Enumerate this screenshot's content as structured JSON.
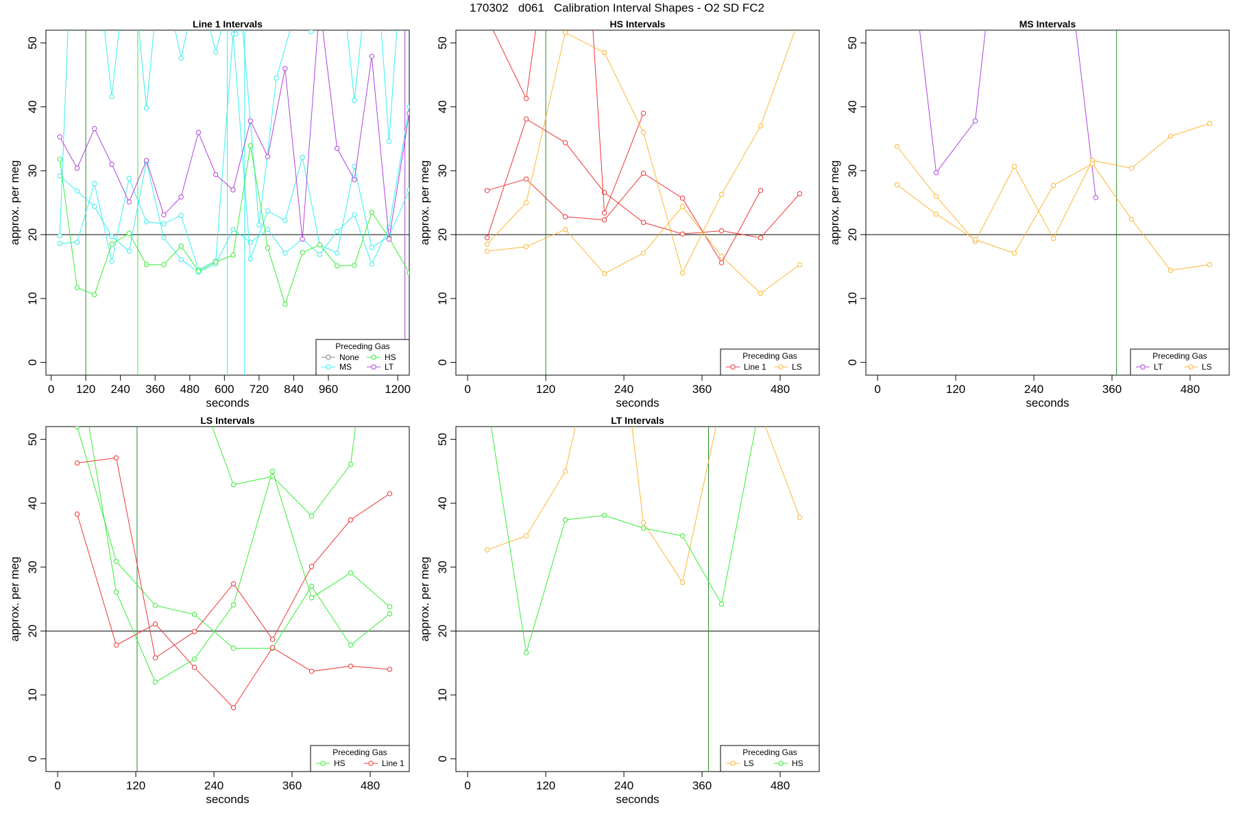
{
  "title": "170302   d061   Calibration Interval Shapes - O2 SD FC2",
  "colors": {
    "None": "#808080",
    "HS": "#33ee33",
    "MS": "#33eeee",
    "LT": "#b040dd",
    "Line 1": "#ee3333",
    "LS": "#ffb533",
    "ref": "#000000",
    "vline": "#228822"
  },
  "chart_data": [
    {
      "type": "line",
      "title": "Line 1 Intervals",
      "xlabel": "seconds",
      "ylabel": "approx. per meg",
      "xlim": [
        -18,
        1240
      ],
      "ylim": [
        -2,
        52
      ],
      "xticks": [
        0,
        120,
        240,
        360,
        480,
        600,
        720,
        840,
        960,
        1200
      ],
      "yticks": [
        0,
        10,
        20,
        30,
        40,
        50
      ],
      "hline": 20,
      "vlines": [
        {
          "x": 120,
          "color": "#228822"
        },
        {
          "x": 300,
          "color": "#33ee33"
        },
        {
          "x": 610,
          "color": "#33eeee"
        },
        {
          "x": 670,
          "color": "#33eeee"
        },
        {
          "x": 1225,
          "color": "#b040dd"
        }
      ],
      "legend": {
        "title": "Preceding Gas",
        "position": "bottom-right",
        "entries": [
          "None",
          "HS",
          "MS",
          "LT"
        ]
      },
      "series": [
        {
          "gas": "MS",
          "x": [
            30,
            90,
            150,
            210,
            270,
            330,
            390,
            450,
            510,
            570,
            630,
            690,
            750,
            810,
            870,
            930,
            990,
            1050,
            1110,
            1170,
            1240
          ],
          "y": [
            29.2,
            26.8,
            24.4,
            19.7,
            17.4,
            31.4,
            19.5,
            16.1,
            14.1,
            15.4,
            20.8,
            18.8,
            20.8,
            17.1,
            19.3,
            16.9,
            20.5,
            23.1,
            15.4,
            21.1,
            40
          ]
        },
        {
          "gas": "MS",
          "x": [
            30,
            90,
            150,
            210,
            270,
            330,
            390,
            450,
            510,
            570,
            630,
            690,
            750,
            810,
            870,
            930,
            990,
            1050,
            1110,
            1170,
            1240
          ],
          "y": [
            18.6,
            18.8,
            28.0,
            15.8,
            28.8,
            22.0,
            21.7,
            23.0,
            14.5,
            15.9,
            51.4,
            16.2,
            23.7,
            22.2,
            32.1,
            18.4,
            17.1,
            30.7,
            18.0,
            19.7,
            27
          ]
        },
        {
          "gas": "MS",
          "x": [
            30,
            60,
            120,
            180,
            210,
            240,
            300,
            330,
            360,
            420,
            450,
            480,
            540,
            570,
            600,
            640,
            660,
            720,
            780,
            840,
            870,
            900,
            960,
            1020,
            1050,
            1080,
            1140,
            1170,
            1200,
            1240
          ],
          "y": [
            19.8,
            54,
            54,
            54,
            41.6,
            54,
            54,
            39.8,
            54,
            54,
            47.6,
            54,
            54,
            48.6,
            54,
            51.4,
            54,
            21.5,
            44.5,
            54,
            54,
            51.8,
            54,
            54,
            41.0,
            54,
            54,
            34.6,
            54,
            54
          ]
        },
        {
          "gas": "HS",
          "x": [
            30,
            90,
            150,
            210,
            270,
            330,
            390,
            450,
            510,
            570,
            630,
            690,
            750,
            810,
            870,
            930,
            990,
            1050,
            1110,
            1170,
            1240
          ],
          "y": [
            31.8,
            11.7,
            10.6,
            18.5,
            20.2,
            15.3,
            15.3,
            18.2,
            14.3,
            15.7,
            16.8,
            33.9,
            17.9,
            9.1,
            17.2,
            18.4,
            15.1,
            15.2,
            23.5,
            19.5,
            14
          ]
        },
        {
          "gas": "LT",
          "x": [
            30,
            90,
            150,
            210,
            270,
            330,
            390,
            450,
            510,
            570,
            630,
            690,
            750,
            810,
            870,
            930,
            990,
            1050,
            1110,
            1170,
            1240
          ],
          "y": [
            35.3,
            30.4,
            36.6,
            31.0,
            25.1,
            31.6,
            23.1,
            25.9,
            36.0,
            29.4,
            27.0,
            37.8,
            32.2,
            46.0,
            19.3,
            56,
            33.5,
            28.6,
            47.9,
            19.3,
            39
          ]
        }
      ]
    },
    {
      "type": "line",
      "title": "HS Intervals",
      "xlabel": "seconds",
      "ylabel": "approx. per meg",
      "xlim": [
        -18,
        540
      ],
      "ylim": [
        -2,
        52
      ],
      "xticks": [
        0,
        120,
        240,
        360,
        480
      ],
      "yticks": [
        0,
        10,
        20,
        30,
        40,
        50
      ],
      "hline": 20,
      "vlines": [
        {
          "x": 120,
          "color": "#228822"
        }
      ],
      "legend": {
        "title": "Preceding Gas",
        "position": "bottom-right",
        "entries": [
          "Line 1",
          "LS"
        ]
      },
      "series": [
        {
          "gas": "Line 1",
          "x": [
            30,
            90,
            150,
            210,
            270,
            330,
            390,
            450,
            510
          ],
          "y": [
            26.9,
            28.7,
            22.8,
            22.3,
            29.6,
            25.7,
            15.6,
            26.9,
            null
          ]
        },
        {
          "gas": "Line 1",
          "x": [
            30,
            90,
            150,
            210,
            270,
            330,
            390,
            450,
            510
          ],
          "y": [
            19.5,
            38.1,
            34.4,
            26.6,
            21.9,
            20.1,
            20.6,
            19.5,
            26.4
          ]
        },
        {
          "gas": "Line 1",
          "x": [
            20,
            90,
            110,
            190,
            210,
            270
          ],
          "y": [
            56,
            41.3,
            56,
            56,
            23.4,
            39.0
          ]
        },
        {
          "gas": "LS",
          "x": [
            30,
            90,
            150,
            210,
            270,
            330,
            390,
            450,
            510
          ],
          "y": [
            18.5,
            25.0,
            51.6,
            48.5,
            36.0,
            14.0,
            26.3,
            37.0,
            54
          ]
        },
        {
          "gas": "LS",
          "x": [
            30,
            90,
            150,
            210,
            270,
            330,
            390,
            450,
            510
          ],
          "y": [
            17.4,
            18.1,
            20.8,
            13.9,
            17.1,
            24.4,
            16.6,
            10.8,
            15.3
          ]
        }
      ]
    },
    {
      "type": "line",
      "title": "MS Intervals",
      "xlabel": "seconds",
      "ylabel": "approx. per meg",
      "xlim": [
        -18,
        540
      ],
      "ylim": [
        -2,
        52
      ],
      "xticks": [
        0,
        120,
        240,
        360,
        480
      ],
      "yticks": [
        0,
        10,
        20,
        30,
        40,
        50
      ],
      "hline": 20,
      "vlines": [
        {
          "x": 367,
          "color": "#228822"
        }
      ],
      "legend": {
        "title": "Preceding Gas",
        "position": "bottom-right",
        "entries": [
          "LT",
          "LS"
        ]
      },
      "series": [
        {
          "gas": "LT",
          "x": [
            60,
            90,
            150,
            170,
            300,
            335
          ],
          "y": [
            56,
            29.7,
            37.8,
            56,
            56,
            25.8
          ]
        },
        {
          "gas": "LS",
          "x": [
            30,
            90,
            150,
            210,
            270,
            330,
            390,
            450,
            510
          ],
          "y": [
            33.8,
            26.0,
            18.9,
            30.7,
            19.4,
            31.6,
            30.4,
            35.4,
            37.4
          ]
        },
        {
          "gas": "LS",
          "x": [
            30,
            90,
            150,
            210,
            270,
            330,
            390,
            450,
            510
          ],
          "y": [
            27.8,
            23.2,
            19.2,
            17.1,
            27.7,
            31.1,
            22.4,
            14.4,
            15.3
          ]
        }
      ]
    },
    {
      "type": "line",
      "title": "LS Intervals",
      "xlabel": "seconds",
      "ylabel": "approx. per meg",
      "xlim": [
        -18,
        540
      ],
      "ylim": [
        -2,
        52
      ],
      "xticks": [
        0,
        120,
        240,
        360,
        480
      ],
      "yticks": [
        0,
        10,
        20,
        30,
        40,
        50
      ],
      "hline": 20,
      "vlines": [
        {
          "x": 122,
          "color": "#228822"
        }
      ],
      "legend": {
        "title": "Preceding Gas",
        "position": "bottom-right",
        "entries": [
          "HS",
          "Line 1"
        ]
      },
      "series": [
        {
          "gas": "HS",
          "x": [
            30,
            90,
            150,
            210,
            270,
            330,
            390,
            450,
            510
          ],
          "y": [
            52,
            30.9,
            24.0,
            22.6,
            17.3,
            17.3,
            27.0,
            17.8,
            22.7
          ]
        },
        {
          "gas": "HS",
          "x": [
            45,
            90,
            150,
            210,
            270,
            330,
            390,
            450,
            510
          ],
          "y": [
            54,
            26.1,
            12.0,
            15.6,
            24.1,
            45.0,
            25.2,
            29.1,
            23.8
          ]
        },
        {
          "gas": "HS",
          "x": [
            230,
            270,
            330,
            390,
            450,
            460
          ],
          "y": [
            54,
            42.9,
            44.2,
            38.0,
            46.1,
            54
          ]
        },
        {
          "gas": "Line 1",
          "x": [
            30,
            90,
            150,
            210,
            270,
            330,
            390,
            450,
            510
          ],
          "y": [
            46.3,
            47.1,
            15.8,
            19.9,
            27.4,
            18.7,
            30.1,
            37.4,
            41.5
          ]
        },
        {
          "gas": "Line 1",
          "x": [
            30,
            90,
            150,
            210,
            270,
            330,
            390,
            450,
            510
          ],
          "y": [
            38.3,
            17.8,
            21.1,
            14.3,
            8.0,
            17.4,
            13.7,
            14.5,
            14.0
          ]
        }
      ]
    },
    {
      "type": "line",
      "title": "LT Intervals",
      "xlabel": "seconds",
      "ylabel": "approx. per meg",
      "xlim": [
        -18,
        540
      ],
      "ylim": [
        -2,
        52
      ],
      "xticks": [
        0,
        120,
        240,
        360,
        480
      ],
      "yticks": [
        0,
        10,
        20,
        30,
        40,
        50
      ],
      "hline": 20,
      "vlines": [
        {
          "x": 370,
          "color": "#228822"
        }
      ],
      "legend": {
        "title": "Preceding Gas",
        "position": "bottom-right",
        "entries": [
          "LS",
          "HS"
        ]
      },
      "series": [
        {
          "gas": "LS",
          "x": [
            30,
            90,
            150,
            170,
            250,
            270,
            330,
            390,
            450,
            510
          ],
          "y": [
            32.7,
            34.9,
            45.0,
            54,
            54,
            37.0,
            27.6,
            56,
            54,
            37.8
          ]
        },
        {
          "gas": "HS",
          "x": [
            30,
            90,
            150,
            210,
            270,
            330,
            390,
            450
          ],
          "y": [
            56,
            16.6,
            37.4,
            38.1,
            36.1,
            34.9,
            24.2,
            56
          ]
        }
      ]
    }
  ]
}
